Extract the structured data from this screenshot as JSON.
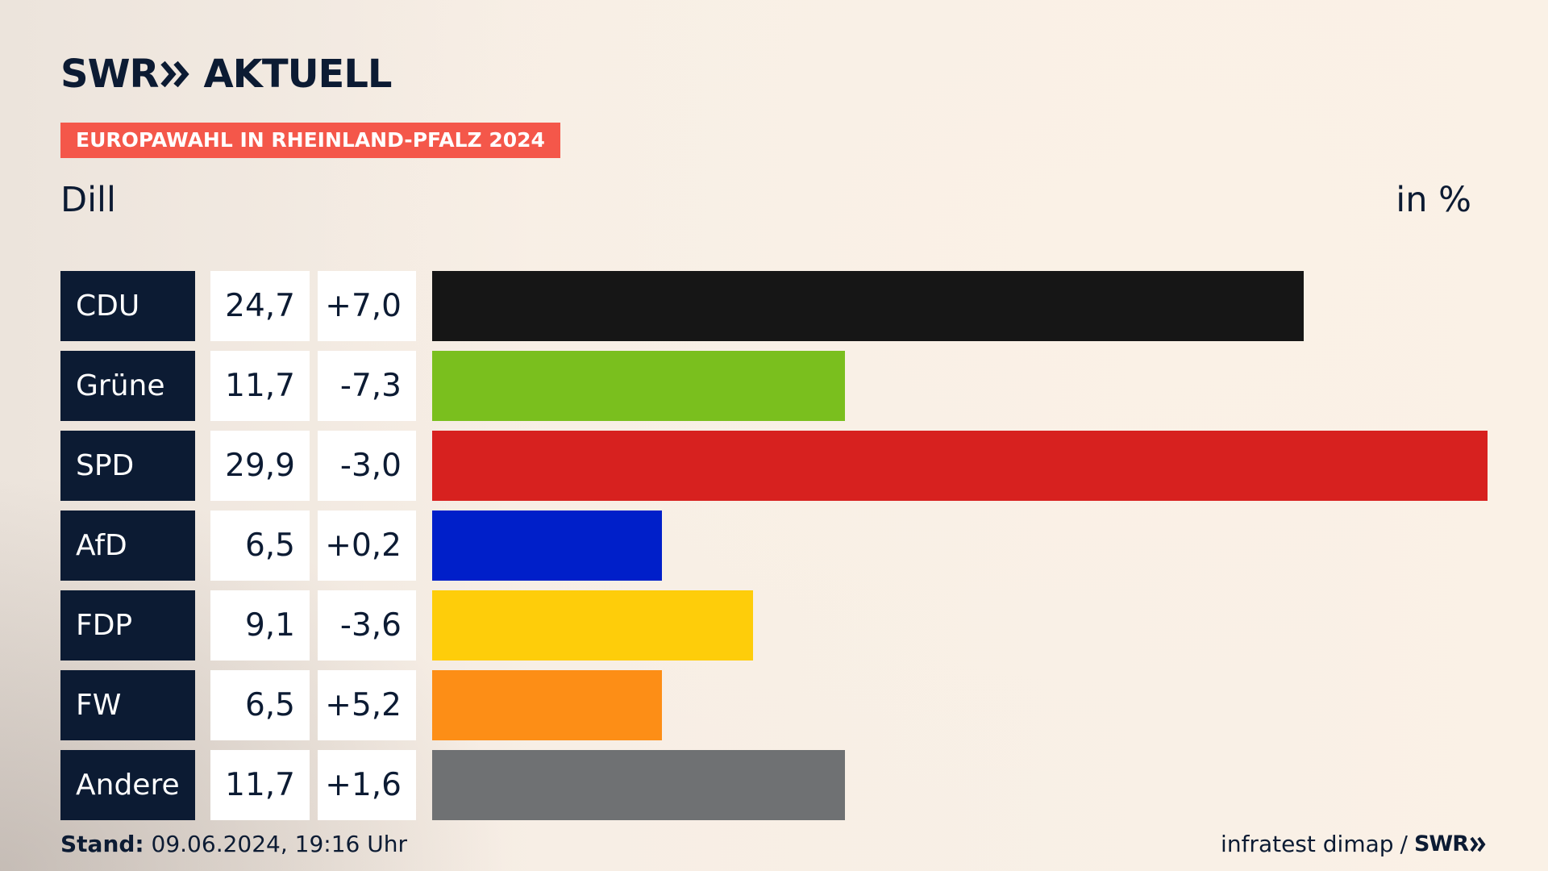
{
  "logo": {
    "brand": "SWR",
    "product": "AKTUELL",
    "chevron_icon": "double-chevron-right-icon"
  },
  "badge": "EUROPAWAHL IN RHEINLAND-PFALZ 2024",
  "region": "Dill",
  "unit": "in %",
  "footer": {
    "stand_label": "Stand:",
    "stand_value": "09.06.2024, 19:16 Uhr",
    "source": "infratest dimap",
    "separator": "/",
    "source_brand": "SWR"
  },
  "colors": {
    "navy": "#0c1b33",
    "badge": "#f4574a"
  },
  "chart_data": {
    "type": "bar",
    "orientation": "horizontal",
    "categories": [
      "CDU",
      "Grüne",
      "SPD",
      "AfD",
      "FDP",
      "FW",
      "Andere"
    ],
    "values": [
      24.7,
      11.7,
      29.9,
      6.5,
      9.1,
      6.5,
      11.7
    ],
    "value_labels": [
      "24,7",
      "11,7",
      "29,9",
      "6,5",
      "9,1",
      "6,5",
      "11,7"
    ],
    "diff_labels": [
      "+7,0",
      "-7,3",
      "-3,0",
      "+0,2",
      "-3,6",
      "+5,2",
      "+1,6"
    ],
    "colors": [
      "#161616",
      "#7abf1e",
      "#d7211f",
      "#001fc9",
      "#fecd0a",
      "#fd8e16",
      "#6f7173"
    ],
    "xlim": [
      0,
      29.9
    ],
    "grid": false
  }
}
